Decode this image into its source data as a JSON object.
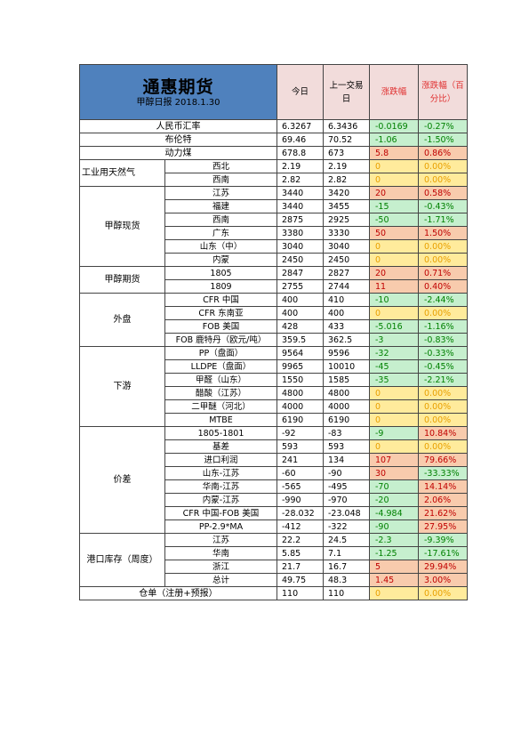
{
  "header": {
    "title": "通惠期货",
    "subtitle": "甲醇日报 2018.1.30",
    "col_today": "今日",
    "col_prev": "上一交易日",
    "col_change": "涨跌幅",
    "col_change_pct": "涨跌幅（百分比）"
  },
  "colors": {
    "title_bg": "#4f81bd",
    "header_bg": "#f2dcdb",
    "positive_bg": "#f8cbad",
    "negative_bg": "#c6efce",
    "zero_bg": "#ffeb9c"
  },
  "rows": {
    "r0": {
      "label": "人民币汇率",
      "today": "6.3267",
      "prev": "6.3436",
      "chg": "-0.0169",
      "pct": "-0.27%"
    },
    "r1": {
      "label": "布伦特",
      "today": "69.46",
      "prev": "70.52",
      "chg": "-1.06",
      "pct": "-1.50%"
    },
    "r2": {
      "label": "动力煤",
      "today": "678.8",
      "prev": "673",
      "chg": "5.8",
      "pct": "0.86%"
    },
    "g_gas": "工业用天然气",
    "r3": {
      "label": "西北",
      "today": "2.19",
      "prev": "2.19",
      "chg": "0",
      "pct": "0.00%"
    },
    "r4": {
      "label": "西南",
      "today": "2.82",
      "prev": "2.82",
      "chg": "0",
      "pct": "0.00%"
    },
    "g_spot": "甲醇现货",
    "r5": {
      "label": "江苏",
      "today": "3440",
      "prev": "3420",
      "chg": "20",
      "pct": "0.58%"
    },
    "r6": {
      "label": "福建",
      "today": "3440",
      "prev": "3455",
      "chg": "-15",
      "pct": "-0.43%"
    },
    "r7": {
      "label": "西南",
      "today": "2875",
      "prev": "2925",
      "chg": "-50",
      "pct": "-1.71%"
    },
    "r8": {
      "label": "广东",
      "today": "3380",
      "prev": "3330",
      "chg": "50",
      "pct": "1.50%"
    },
    "r9": {
      "label": "山东（中）",
      "today": "3040",
      "prev": "3040",
      "chg": "0",
      "pct": "0.00%"
    },
    "r10": {
      "label": "内蒙",
      "today": "2450",
      "prev": "2450",
      "chg": "0",
      "pct": "0.00%"
    },
    "g_fut": "甲醇期货",
    "r11": {
      "label": "1805",
      "today": "2847",
      "prev": "2827",
      "chg": "20",
      "pct": "0.71%"
    },
    "r12": {
      "label": "1809",
      "today": "2755",
      "prev": "2744",
      "chg": "11",
      "pct": "0.40%"
    },
    "g_ext": "外盘",
    "r13": {
      "label": "CFR 中国",
      "today": "400",
      "prev": "410",
      "chg": "-10",
      "pct": "-2.44%"
    },
    "r14": {
      "label": "CFR 东南亚",
      "today": "400",
      "prev": "400",
      "chg": "0",
      "pct": "0.00%"
    },
    "r15": {
      "label": "FOB 美国",
      "today": "428",
      "prev": "433",
      "chg": "-5.016",
      "pct": "-1.16%"
    },
    "r16": {
      "label": "FOB 鹿特丹（欧元/吨）",
      "today": "359.5",
      "prev": "362.5",
      "chg": "-3",
      "pct": "-0.83%"
    },
    "g_down": "下游",
    "r17": {
      "label": "PP（盘面）",
      "today": "9564",
      "prev": "9596",
      "chg": "-32",
      "pct": "-0.33%"
    },
    "r18": {
      "label": "LLDPE（盘面）",
      "today": "9965",
      "prev": "10010",
      "chg": "-45",
      "pct": "-0.45%"
    },
    "r19": {
      "label": "甲醛（山东）",
      "today": "1550",
      "prev": "1585",
      "chg": "-35",
      "pct": "-2.21%"
    },
    "r20": {
      "label": "醋酸（江苏）",
      "today": "4800",
      "prev": "4800",
      "chg": "0",
      "pct": "0.00%"
    },
    "r21": {
      "label": "二甲醚（河北）",
      "today": "4000",
      "prev": "4000",
      "chg": "0",
      "pct": "0.00%"
    },
    "r22": {
      "label": "MTBE",
      "today": "6190",
      "prev": "6190",
      "chg": "0",
      "pct": "0.00%"
    },
    "g_spread": "价差",
    "r23": {
      "label": "1805-1801",
      "today": "-92",
      "prev": "-83",
      "chg": "-9",
      "pct": "10.84%"
    },
    "r24": {
      "label": "基差",
      "today": "593",
      "prev": "593",
      "chg": "0",
      "pct": "0.00%"
    },
    "r25": {
      "label": "进口利润",
      "today": "241",
      "prev": "134",
      "chg": "107",
      "pct": "79.66%"
    },
    "r26": {
      "label": "山东-江苏",
      "today": "-60",
      "prev": "-90",
      "chg": "30",
      "pct": "-33.33%"
    },
    "r27": {
      "label": "华南-江苏",
      "today": "-565",
      "prev": "-495",
      "chg": "-70",
      "pct": "14.14%"
    },
    "r28": {
      "label": "内蒙-江苏",
      "today": "-990",
      "prev": "-970",
      "chg": "-20",
      "pct": "2.06%"
    },
    "r29": {
      "label": "CFR 中国-FOB 美国",
      "today": "-28.032",
      "prev": "-23.048",
      "chg": "-4.984",
      "pct": "21.62%"
    },
    "r30": {
      "label": "PP-2.9*MA",
      "today": "-412",
      "prev": "-322",
      "chg": "-90",
      "pct": "27.95%"
    },
    "g_port": "港口库存（周度）",
    "r31": {
      "label": "江苏",
      "today": "22.2",
      "prev": "24.5",
      "chg": "-2.3",
      "pct": "-9.39%"
    },
    "r32": {
      "label": "华南",
      "today": "5.85",
      "prev": "7.1",
      "chg": "-1.25",
      "pct": "-17.61%"
    },
    "r33": {
      "label": "浙江",
      "today": "21.7",
      "prev": "16.7",
      "chg": "5",
      "pct": "29.94%"
    },
    "r34": {
      "label": "总计",
      "today": "49.75",
      "prev": "48.3",
      "chg": "1.45",
      "pct": "3.00%"
    },
    "r35": {
      "label": "仓单（注册+预报）",
      "today": "110",
      "prev": "110",
      "chg": "0",
      "pct": "0.00%"
    }
  }
}
